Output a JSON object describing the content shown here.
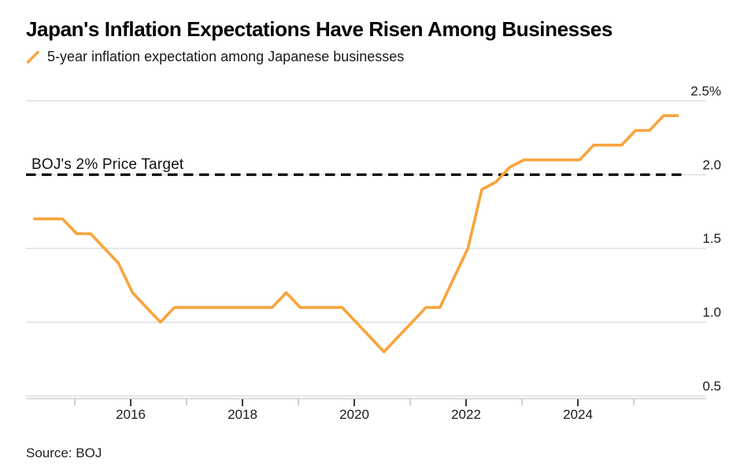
{
  "header": {
    "title": "Japan's Inflation Expectations Have Risen Among Businesses",
    "legend_label": "5-year inflation expectation among Japanese businesses"
  },
  "annotation": {
    "target_label": "BOJ's 2% Price Target"
  },
  "source": {
    "text": "Source: BOJ"
  },
  "colors": {
    "line": "#F8A33B",
    "target_line": "#141414",
    "grid": "#D8D8D8",
    "axis": "#C9C9C9",
    "tick_major": "#3C3C3C",
    "tick_minor": "#C3C3C3",
    "text": "#1A1A1A"
  },
  "chart_data": {
    "type": "line",
    "title": "Japan's Inflation Expectations Have Risen Among Businesses",
    "xlabel": "",
    "ylabel": "",
    "y_unit": "%",
    "ylim": [
      0.5,
      2.5
    ],
    "y_ticks": [
      0.5,
      1.0,
      1.5,
      2.0,
      2.5
    ],
    "y_tick_labels": [
      "0.5",
      "1.0",
      "1.5",
      "2.0",
      "2.5%"
    ],
    "x_major_ticks": [
      2016,
      2018,
      2020,
      2022,
      2024
    ],
    "x_major_tick_labels": [
      "2016",
      "2018",
      "2020",
      "2022",
      "2024"
    ],
    "x_minor_ticks": [
      2015,
      2017,
      2019,
      2021,
      2023,
      2025
    ],
    "grid": "horizontal",
    "legend_position": "top-left",
    "target_line": {
      "label": "BOJ's 2% Price Target",
      "value": 2.0,
      "style": "dashed"
    },
    "series": [
      {
        "name": "5-year inflation expectation among Japanese businesses",
        "quarters": [
          "2014 Q1",
          "2014 Q2",
          "2014 Q3",
          "2014 Q4",
          "2015 Q1",
          "2015 Q2",
          "2015 Q3",
          "2015 Q4",
          "2016 Q1",
          "2016 Q2",
          "2016 Q3",
          "2016 Q4",
          "2017 Q1",
          "2017 Q2",
          "2017 Q3",
          "2017 Q4",
          "2018 Q1",
          "2018 Q2",
          "2018 Q3",
          "2018 Q4",
          "2019 Q1",
          "2019 Q2",
          "2019 Q3",
          "2019 Q4",
          "2020 Q1",
          "2020 Q2",
          "2020 Q3",
          "2020 Q4",
          "2021 Q1",
          "2021 Q2",
          "2021 Q3",
          "2021 Q4",
          "2022 Q1",
          "2022 Q2",
          "2022 Q3",
          "2022 Q4",
          "2023 Q1",
          "2023 Q2",
          "2023 Q3",
          "2023 Q4",
          "2024 Q1",
          "2024 Q2",
          "2024 Q3",
          "2024 Q4",
          "2025 Q1",
          "2025 Q2",
          "2025 Q3"
        ],
        "values": [
          1.7,
          1.7,
          1.7,
          1.6,
          1.6,
          1.5,
          1.4,
          1.2,
          1.1,
          1.0,
          1.1,
          1.1,
          1.1,
          1.1,
          1.1,
          1.1,
          1.1,
          1.1,
          1.2,
          1.1,
          1.1,
          1.1,
          1.1,
          1.0,
          0.9,
          0.8,
          0.9,
          1.0,
          1.1,
          1.1,
          1.3,
          1.5,
          1.9,
          1.95,
          2.05,
          2.1,
          2.1,
          2.1,
          2.1,
          2.1,
          2.2,
          2.2,
          2.2,
          2.3,
          2.3,
          2.4,
          2.4
        ]
      }
    ]
  }
}
